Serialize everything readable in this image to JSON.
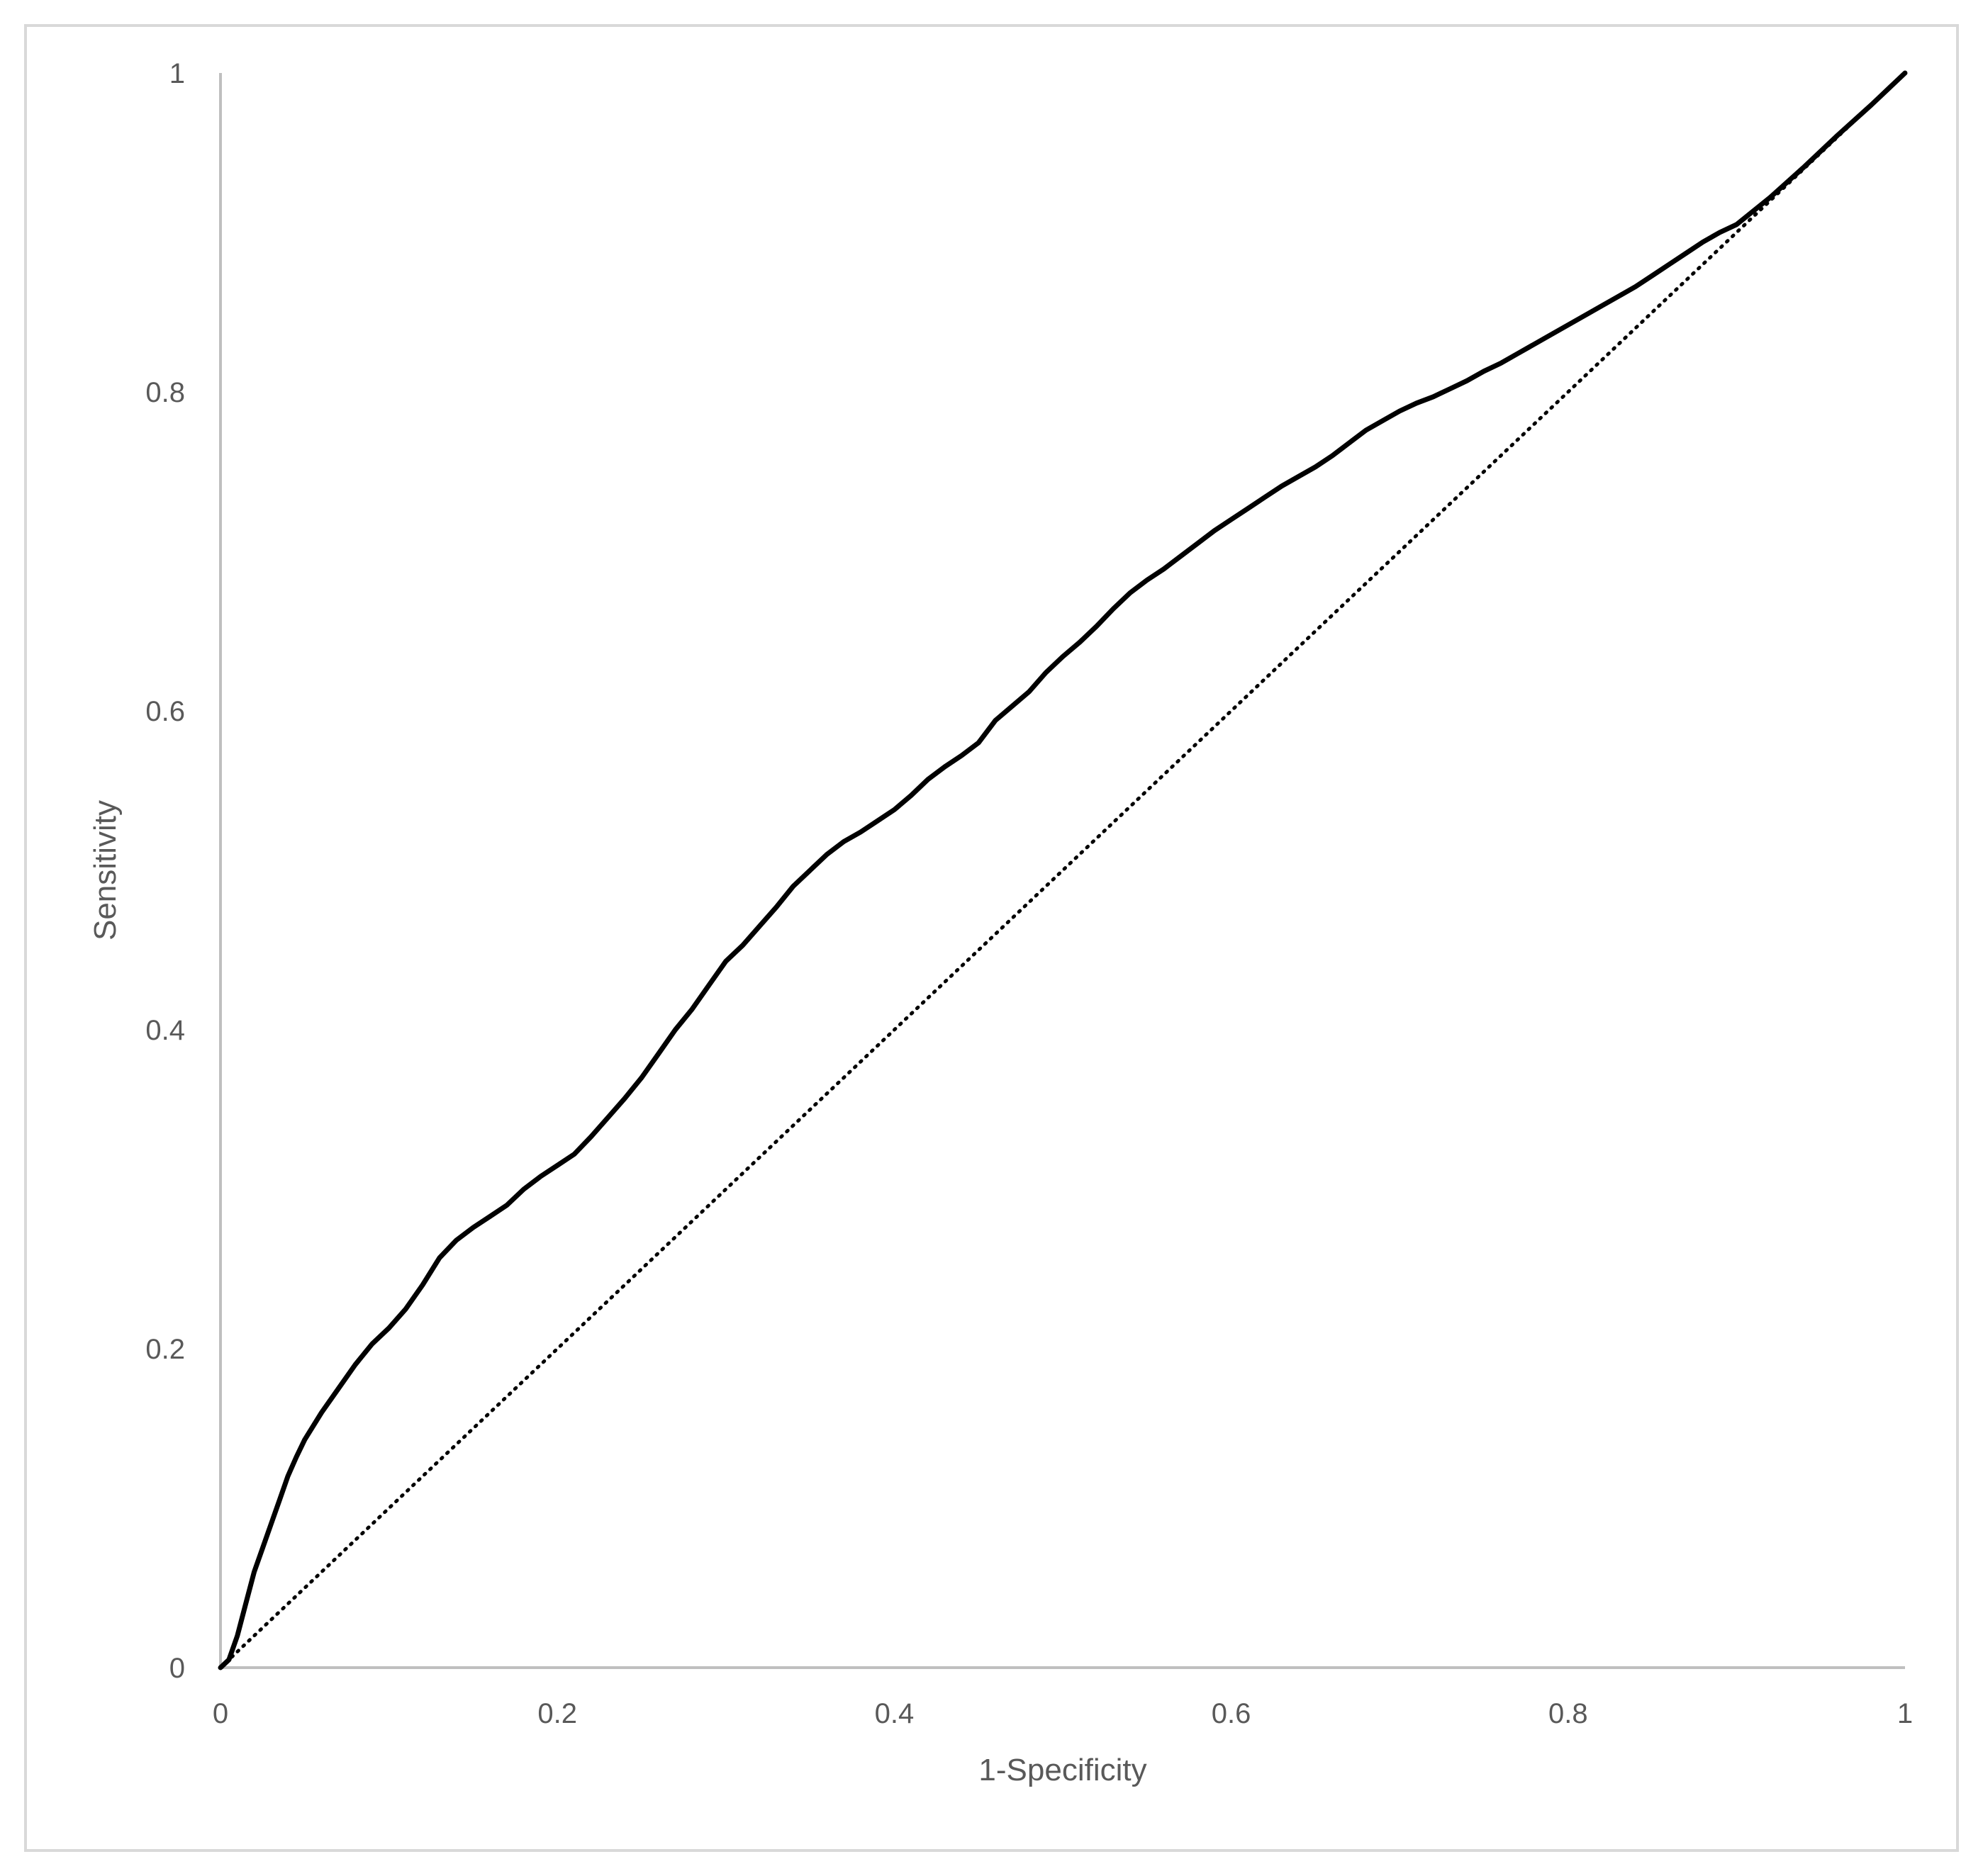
{
  "chart_data": {
    "type": "line",
    "title": "",
    "xlabel": "1-Specificity",
    "ylabel": "Sensitivity",
    "xlim": [
      0,
      1
    ],
    "ylim": [
      0,
      1
    ],
    "x_ticks": [
      "0",
      "0.2",
      "0.4",
      "0.6",
      "0.8",
      "1"
    ],
    "y_ticks": [
      "0",
      "0.2",
      "0.4",
      "0.6",
      "0.8",
      "1"
    ],
    "grid": false,
    "legend": "none",
    "series": [
      {
        "style": "solid",
        "color": "#000000",
        "x": [
          0,
          0.005,
          0.01,
          0.015,
          0.02,
          0.025,
          0.03,
          0.035,
          0.04,
          0.045,
          0.05,
          0.06,
          0.07,
          0.08,
          0.09,
          0.1,
          0.11,
          0.12,
          0.13,
          0.14,
          0.15,
          0.16,
          0.17,
          0.18,
          0.19,
          0.2,
          0.21,
          0.22,
          0.23,
          0.24,
          0.25,
          0.26,
          0.27,
          0.28,
          0.29,
          0.3,
          0.31,
          0.32,
          0.33,
          0.34,
          0.35,
          0.36,
          0.37,
          0.38,
          0.39,
          0.4,
          0.41,
          0.42,
          0.43,
          0.44,
          0.45,
          0.46,
          0.47,
          0.48,
          0.49,
          0.5,
          0.51,
          0.52,
          0.53,
          0.54,
          0.55,
          0.56,
          0.57,
          0.58,
          0.59,
          0.6,
          0.61,
          0.62,
          0.63,
          0.64,
          0.65,
          0.66,
          0.67,
          0.68,
          0.69,
          0.7,
          0.71,
          0.72,
          0.73,
          0.74,
          0.75,
          0.76,
          0.77,
          0.78,
          0.79,
          0.8,
          0.81,
          0.82,
          0.83,
          0.84,
          0.85,
          0.86,
          0.87,
          0.88,
          0.89,
          0.9,
          0.92,
          0.94,
          0.96,
          0.98,
          1.0
        ],
        "y": [
          0,
          0.005,
          0.02,
          0.04,
          0.06,
          0.075,
          0.09,
          0.105,
          0.12,
          0.132,
          0.143,
          0.16,
          0.175,
          0.19,
          0.203,
          0.213,
          0.225,
          0.24,
          0.257,
          0.268,
          0.276,
          0.283,
          0.29,
          0.3,
          0.308,
          0.315,
          0.322,
          0.333,
          0.345,
          0.357,
          0.37,
          0.385,
          0.4,
          0.413,
          0.428,
          0.443,
          0.453,
          0.465,
          0.477,
          0.49,
          0.5,
          0.51,
          0.518,
          0.524,
          0.531,
          0.538,
          0.547,
          0.557,
          0.565,
          0.572,
          0.58,
          0.594,
          0.603,
          0.612,
          0.624,
          0.634,
          0.643,
          0.653,
          0.664,
          0.674,
          0.682,
          0.689,
          0.697,
          0.705,
          0.713,
          0.72,
          0.727,
          0.734,
          0.741,
          0.747,
          0.753,
          0.76,
          0.768,
          0.776,
          0.782,
          0.788,
          0.793,
          0.797,
          0.802,
          0.807,
          0.813,
          0.818,
          0.824,
          0.83,
          0.836,
          0.842,
          0.848,
          0.854,
          0.86,
          0.866,
          0.873,
          0.88,
          0.887,
          0.894,
          0.9,
          0.905,
          0.922,
          0.941,
          0.961,
          0.98,
          1.0
        ]
      },
      {
        "style": "dotted",
        "color": "#000000",
        "x": [
          0,
          1
        ],
        "y": [
          0,
          1
        ]
      }
    ]
  }
}
